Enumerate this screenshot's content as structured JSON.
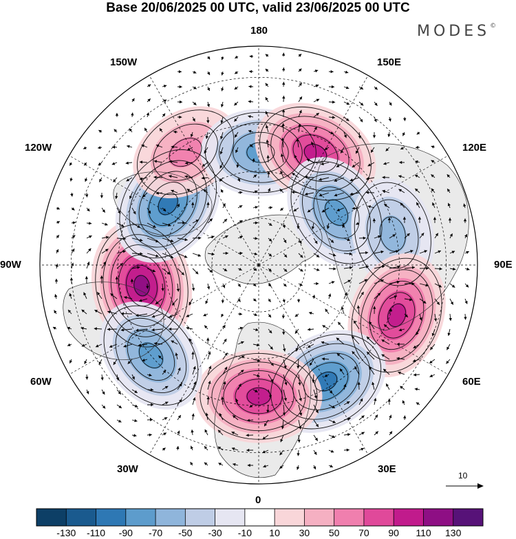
{
  "title": "Base 20/06/2025 00 UTC, valid 23/06/2025 00 UTC",
  "brand": "MODES",
  "brand_mark": "©",
  "longitude_labels": {
    "lon_180": "180",
    "lon_150e": "150E",
    "lon_120e": "120E",
    "lon_90e": "90E",
    "lon_60e": "60E",
    "lon_30e": "30E",
    "lon_0": "0",
    "lon_30w": "30W",
    "lon_60w": "60W",
    "lon_90w": "90W",
    "lon_120w": "120W",
    "lon_150w": "150W"
  },
  "reference_vector": {
    "value": "10"
  },
  "colorbar": {
    "colors": [
      "#0d3f66",
      "#1a5a8e",
      "#2e78b4",
      "#5d9ccc",
      "#8fb5db",
      "#bfcde6",
      "#e6e6f2",
      "#ffffff",
      "#f9d6d9",
      "#f5b0c2",
      "#f07fae",
      "#e0499a",
      "#c11b8c",
      "#8e0f84",
      "#571278"
    ],
    "labels": [
      "-130",
      "-110",
      "-90",
      "-70",
      "-50",
      "-30",
      "-10",
      "10",
      "30",
      "50",
      "70",
      "90",
      "110",
      "130"
    ]
  },
  "anomaly_centers": [
    {
      "sign": "positive",
      "peak": 110,
      "lon_deg": -80,
      "lat_deg": 52
    },
    {
      "sign": "negative",
      "peak": -90,
      "lon_deg": -124,
      "lat_deg": 55
    },
    {
      "sign": "positive",
      "peak": 50,
      "lon_deg": -147,
      "lat_deg": 47
    },
    {
      "sign": "negative",
      "peak": -70,
      "lon_deg": 179,
      "lat_deg": 54
    },
    {
      "sign": "positive",
      "peak": 90,
      "lon_deg": 153,
      "lat_deg": 50
    },
    {
      "sign": "negative",
      "peak": -70,
      "lon_deg": 124,
      "lat_deg": 60
    },
    {
      "sign": "negative",
      "peak": -50,
      "lon_deg": 103,
      "lat_deg": 46
    },
    {
      "sign": "positive",
      "peak": 90,
      "lon_deg": 70,
      "lat_deg": 43
    },
    {
      "sign": "negative",
      "peak": -90,
      "lon_deg": 30,
      "lat_deg": 47
    },
    {
      "sign": "positive",
      "peak": 90,
      "lon_deg": 0,
      "lat_deg": 48
    },
    {
      "sign": "negative",
      "peak": -70,
      "lon_deg": -50,
      "lat_deg": 45
    }
  ]
}
